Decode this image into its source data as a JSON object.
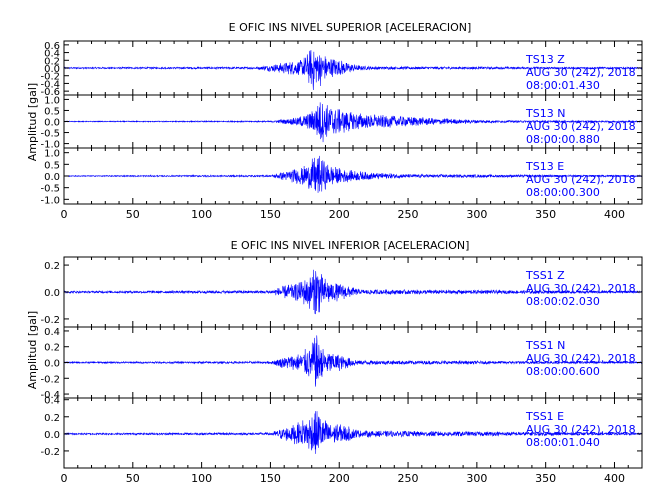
{
  "colors": {
    "trace": "#0000ff",
    "axis": "#000000",
    "annotation": "#0000ff"
  },
  "chart_data": [
    {
      "type": "line",
      "title": "E OFIC INS NIVEL SUPERIOR [ACELERACION]",
      "ylabel": "Amplitud [gal]",
      "xlabel": "",
      "xlim": [
        0,
        420
      ],
      "x_ticks": [
        "0",
        "50",
        "100",
        "150",
        "200",
        "250",
        "300",
        "350",
        "400"
      ],
      "panels": [
        {
          "channel": "TS13 Z",
          "date": "AUG 30 (242), 2018",
          "time": "08:00:01.430",
          "ylim": [
            -0.7,
            0.7
          ],
          "y_ticks": [
            "0.6",
            "0.4",
            "0.2",
            "0.0",
            "-0.2",
            "-0.4",
            "-0.6"
          ],
          "envelope": [
            [
              0,
              0.02
            ],
            [
              140,
              0.03
            ],
            [
              155,
              0.12
            ],
            [
              165,
              0.18
            ],
            [
              172,
              0.22
            ],
            [
              178,
              0.45
            ],
            [
              181,
              0.62
            ],
            [
              184,
              0.58
            ],
            [
              188,
              0.4
            ],
            [
              192,
              0.3
            ],
            [
              198,
              0.25
            ],
            [
              205,
              0.16
            ],
            [
              215,
              0.06
            ],
            [
              230,
              0.04
            ],
            [
              420,
              0.02
            ]
          ]
        },
        {
          "channel": "TS13 N",
          "date": "AUG 30 (242), 2018",
          "time": "08:00:00.880",
          "ylim": [
            -1.2,
            1.2
          ],
          "y_ticks": [
            "1.0",
            "0.5",
            "0.0",
            "-0.5",
            "-1.0"
          ],
          "envelope": [
            [
              0,
              0.02
            ],
            [
              150,
              0.03
            ],
            [
              165,
              0.15
            ],
            [
              175,
              0.3
            ],
            [
              182,
              0.6
            ],
            [
              186,
              1.1
            ],
            [
              190,
              0.95
            ],
            [
              195,
              0.75
            ],
            [
              205,
              0.5
            ],
            [
              220,
              0.35
            ],
            [
              240,
              0.28
            ],
            [
              260,
              0.2
            ],
            [
              290,
              0.1
            ],
            [
              320,
              0.05
            ],
            [
              420,
              0.03
            ]
          ]
        },
        {
          "channel": "TS13 E",
          "date": "AUG 30 (242), 2018",
          "time": "08:00:00.300",
          "ylim": [
            -1.2,
            1.2
          ],
          "y_ticks": [
            "1.0",
            "0.5",
            "0.0",
            "-0.5",
            "-1.0"
          ],
          "envelope": [
            [
              0,
              0.02
            ],
            [
              150,
              0.04
            ],
            [
              160,
              0.2
            ],
            [
              170,
              0.35
            ],
            [
              176,
              0.5
            ],
            [
              180,
              0.75
            ],
            [
              184,
              1.0
            ],
            [
              188,
              0.7
            ],
            [
              195,
              0.45
            ],
            [
              205,
              0.28
            ],
            [
              225,
              0.15
            ],
            [
              250,
              0.08
            ],
            [
              420,
              0.03
            ]
          ]
        }
      ]
    },
    {
      "type": "line",
      "title": "E OFIC INS NIVEL INFERIOR [ACELERACION]",
      "ylabel": "Amplitud [gal]",
      "xlabel": "",
      "xlim": [
        0,
        420
      ],
      "x_ticks": [
        "0",
        "50",
        "100",
        "150",
        "200",
        "250",
        "300",
        "350",
        "400"
      ],
      "panels": [
        {
          "channel": "TSS1 Z",
          "date": "AUG 30 (242), 2018",
          "time": "08:00:02.030",
          "ylim": [
            -0.26,
            0.26
          ],
          "y_ticks": [
            "0.2",
            "0.0",
            "-0.2"
          ],
          "envelope": [
            [
              0,
              0.008
            ],
            [
              150,
              0.012
            ],
            [
              160,
              0.05
            ],
            [
              172,
              0.08
            ],
            [
              180,
              0.15
            ],
            [
              184,
              0.24
            ],
            [
              188,
              0.12
            ],
            [
              195,
              0.08
            ],
            [
              205,
              0.05
            ],
            [
              215,
              0.02
            ],
            [
              420,
              0.008
            ]
          ]
        },
        {
          "channel": "TSS1 N",
          "date": "AUG 30 (242), 2018",
          "time": "08:00:00.600",
          "ylim": [
            -0.45,
            0.45
          ],
          "y_ticks": [
            "0.4",
            "0.2",
            "0.0",
            "-0.2",
            "-0.4"
          ],
          "envelope": [
            [
              0,
              0.01
            ],
            [
              150,
              0.015
            ],
            [
              160,
              0.08
            ],
            [
              172,
              0.12
            ],
            [
              180,
              0.25
            ],
            [
              184,
              0.38
            ],
            [
              188,
              0.2
            ],
            [
              195,
              0.14
            ],
            [
              205,
              0.08
            ],
            [
              215,
              0.03
            ],
            [
              420,
              0.01
            ]
          ]
        },
        {
          "channel": "TSS1 E",
          "date": "AUG 30 (242), 2018",
          "time": "08:00:01.040",
          "ylim": [
            -0.4,
            0.42
          ],
          "y_ticks": [
            "0.4",
            "0.2",
            "0.0",
            "-0.2"
          ],
          "envelope": [
            [
              0,
              0.01
            ],
            [
              150,
              0.015
            ],
            [
              160,
              0.08
            ],
            [
              170,
              0.14
            ],
            [
              178,
              0.22
            ],
            [
              182,
              0.32
            ],
            [
              186,
              0.25
            ],
            [
              192,
              0.15
            ],
            [
              205,
              0.1
            ],
            [
              215,
              0.04
            ],
            [
              420,
              0.012
            ]
          ]
        }
      ]
    }
  ]
}
